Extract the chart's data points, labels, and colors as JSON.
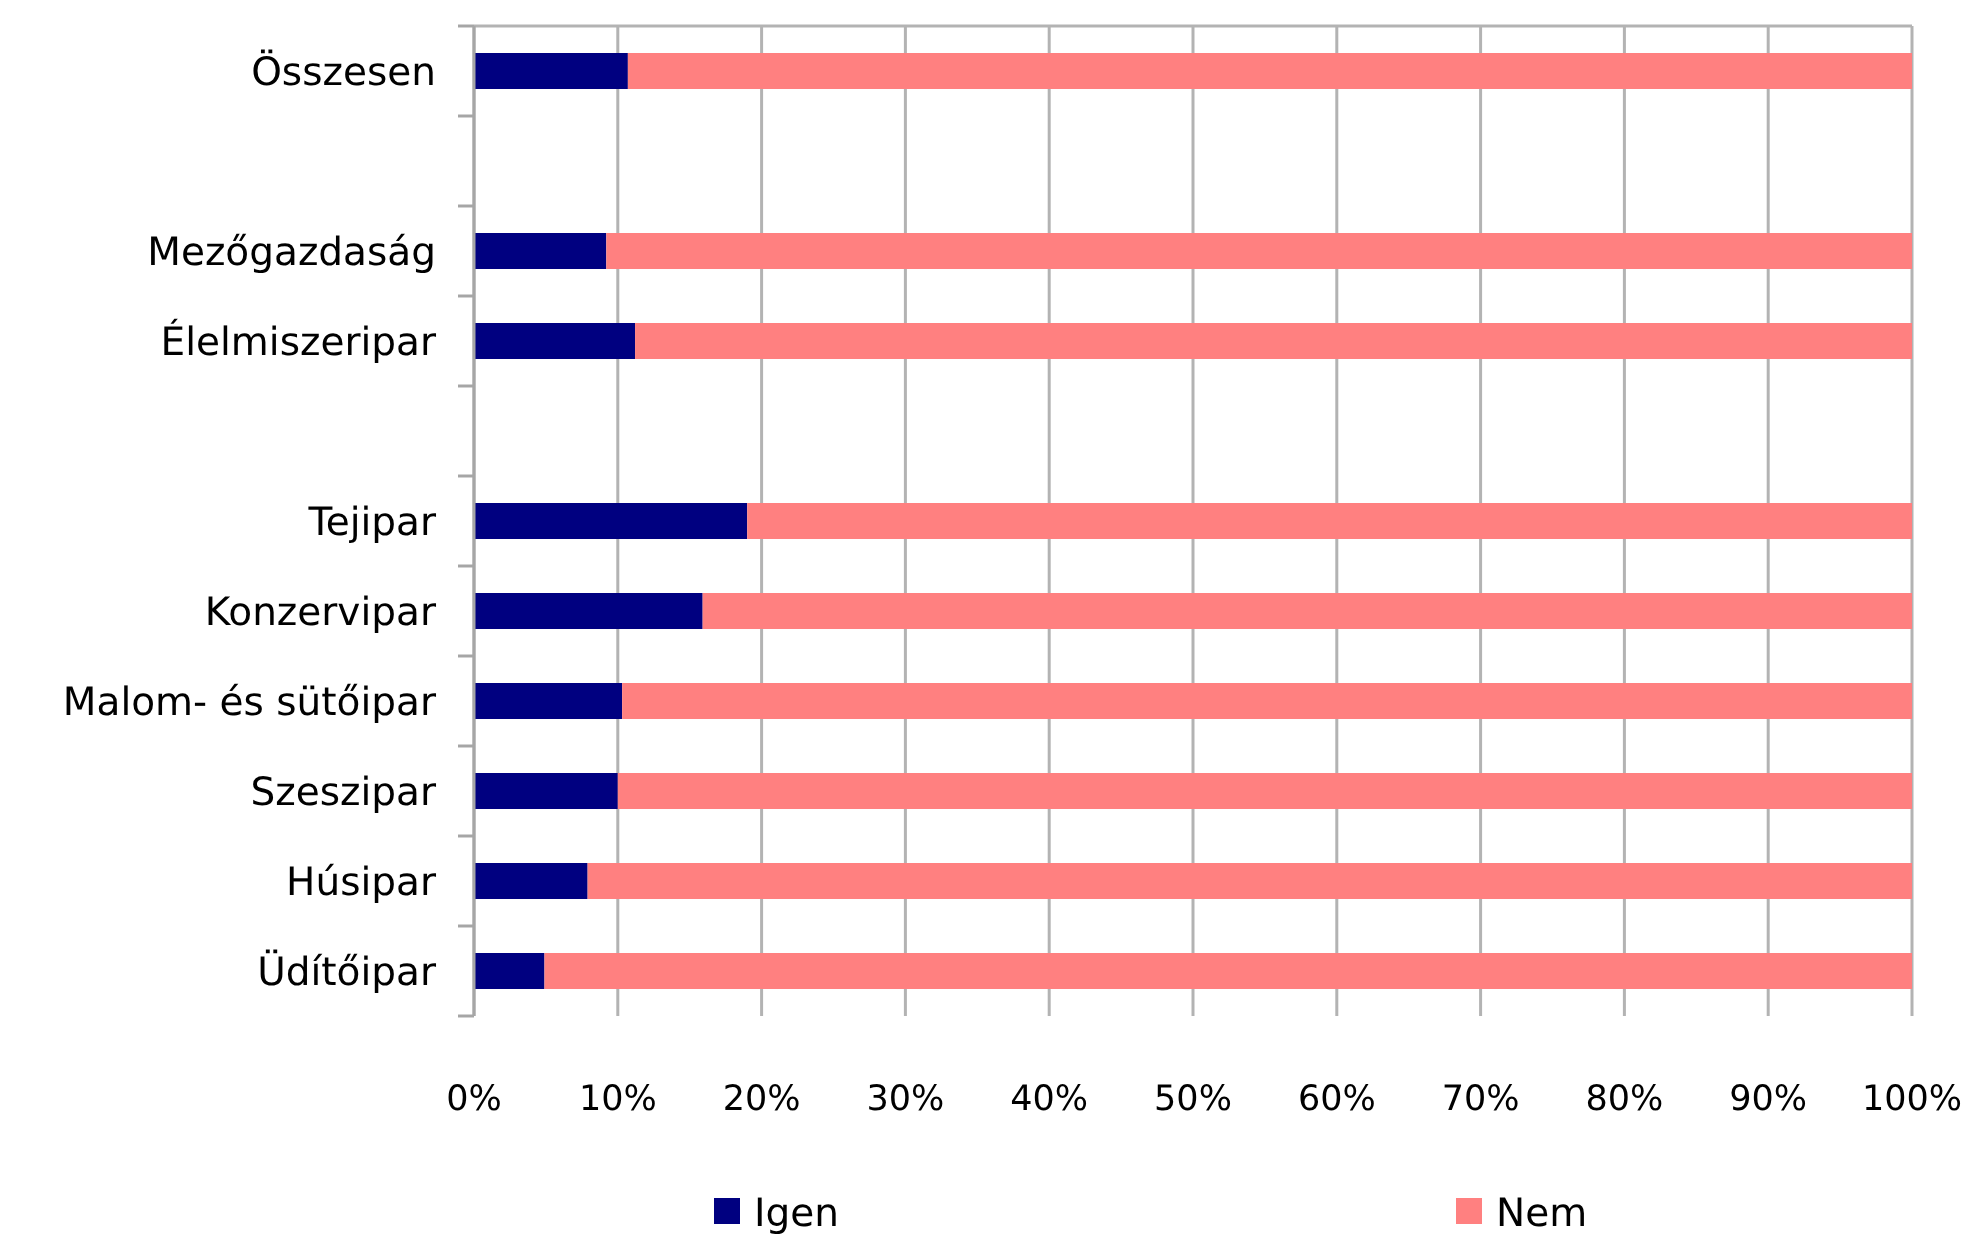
{
  "chart_data": {
    "type": "bar",
    "orientation": "horizontal",
    "stacked": true,
    "categories": [
      "Összesen",
      null,
      "Mezőgazdaság",
      "Élelmiszeripar",
      null,
      "Tejipar",
      "Konzervipar",
      "Malom- és sütőipar",
      "Szeszipar",
      "Húsipar",
      "Üdítőipar"
    ],
    "series": [
      {
        "name": "Igen",
        "color": "#000080",
        "values": [
          10.7,
          null,
          9.2,
          11.2,
          null,
          19.0,
          15.9,
          10.3,
          10.0,
          7.9,
          4.9
        ]
      },
      {
        "name": "Nem",
        "color": "#ff8080",
        "values": [
          89.3,
          null,
          90.8,
          88.8,
          null,
          81.0,
          84.1,
          89.7,
          90.0,
          92.1,
          95.1
        ]
      }
    ],
    "xlim": [
      0,
      100
    ],
    "xticks": [
      {
        "value": 0,
        "label": "0%"
      },
      {
        "value": 10,
        "label": "10%"
      },
      {
        "value": 20,
        "label": "20%"
      },
      {
        "value": 30,
        "label": "30%"
      },
      {
        "value": 40,
        "label": "40%"
      },
      {
        "value": 50,
        "label": "50%"
      },
      {
        "value": 60,
        "label": "60%"
      },
      {
        "value": 70,
        "label": "70%"
      },
      {
        "value": 80,
        "label": "80%"
      },
      {
        "value": 90,
        "label": "90%"
      },
      {
        "value": 100,
        "label": "100%"
      }
    ],
    "grid": "x",
    "legend": "bottom"
  }
}
